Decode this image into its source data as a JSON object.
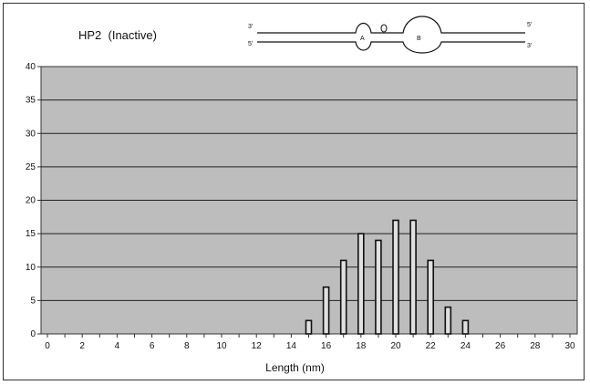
{
  "chart_data": {
    "type": "bar",
    "title": "HP2  (Inactive)",
    "xlabel": "Length (nm)",
    "ylabel": "",
    "x": [
      15,
      16,
      17,
      18,
      19,
      20,
      21,
      22,
      23,
      24
    ],
    "values": [
      2,
      7,
      11,
      15,
      14,
      17,
      17,
      11,
      4,
      2
    ],
    "xlim": [
      0,
      30
    ],
    "ylim": [
      0,
      40
    ],
    "xticks": [
      0,
      2,
      4,
      6,
      8,
      10,
      12,
      14,
      16,
      18,
      20,
      22,
      24,
      26,
      28,
      30
    ],
    "yticks": [
      0,
      5,
      10,
      15,
      20,
      25,
      30,
      35,
      40
    ],
    "grid": true,
    "legend": "none",
    "plot_background": "#bdbdbd",
    "bar_fill": "#e0e0e0",
    "bar_stroke": "#111111"
  },
  "diagram_labels": {
    "top_left": "3'",
    "top_right": "5'",
    "bottom_left": "5'",
    "bottom_right": "3'",
    "loop_a": "A",
    "loop_b": "B"
  }
}
